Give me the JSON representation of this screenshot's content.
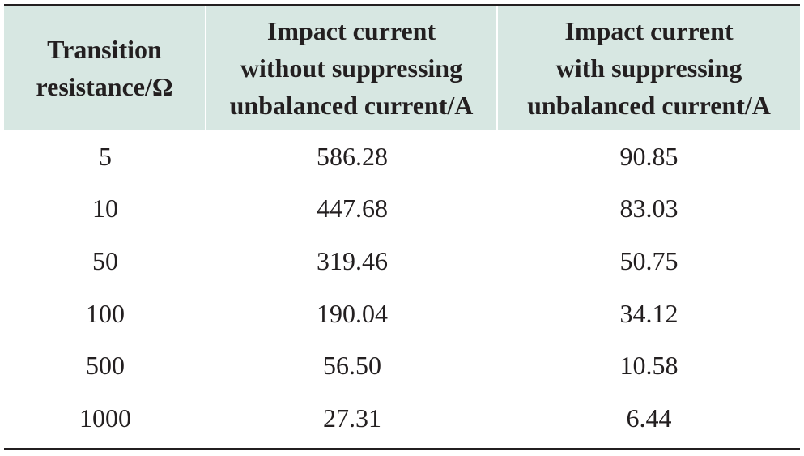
{
  "table": {
    "headers": [
      "Transition\nresistance/Ω",
      "Impact current\nwithout suppressing\nunbalanced current/A",
      "Impact current\nwith suppressing\nunbalanced current/A"
    ],
    "rows": [
      [
        "5",
        "586.28",
        "90.85"
      ],
      [
        "10",
        "447.68",
        "83.03"
      ],
      [
        "50",
        "319.46",
        "50.75"
      ],
      [
        "100",
        "190.04",
        "34.12"
      ],
      [
        "500",
        "56.50",
        "10.58"
      ],
      [
        "1000",
        "27.31",
        "6.44"
      ]
    ]
  },
  "colors": {
    "header_background": "#d7e7e2",
    "text": "#231f20",
    "rule": "#231f20"
  }
}
